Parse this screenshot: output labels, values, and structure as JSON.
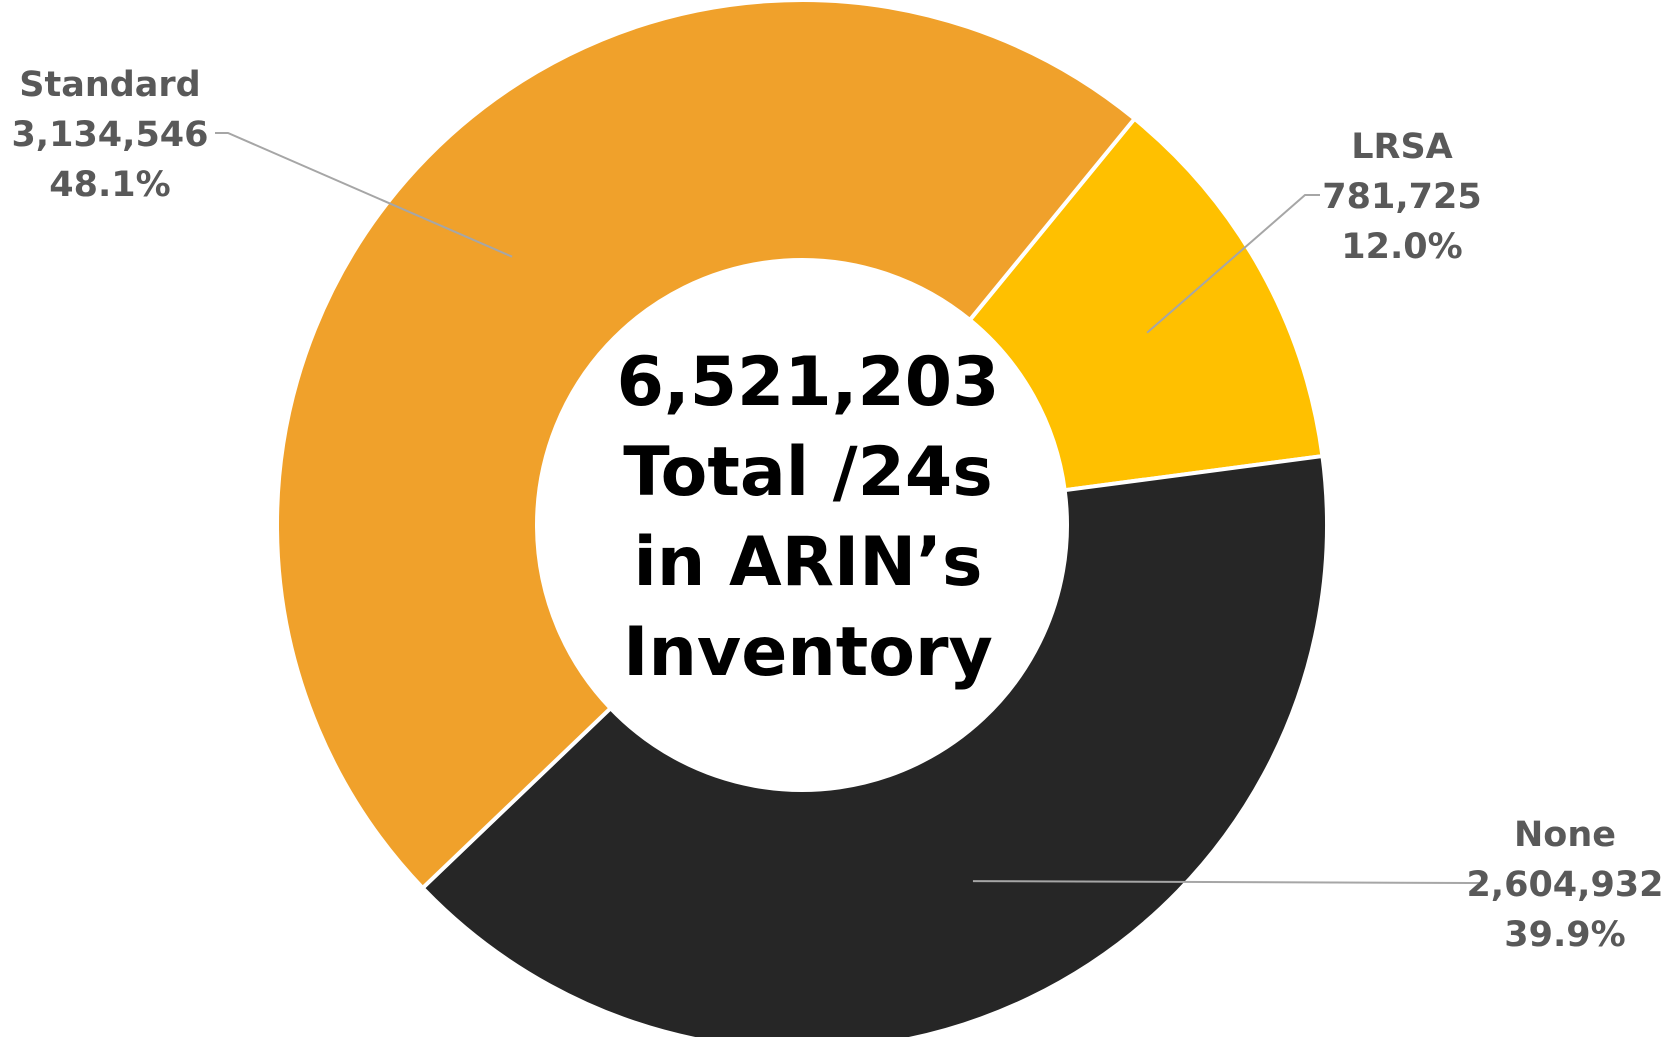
{
  "chart_data": {
    "type": "pie",
    "categories": [
      "Standard",
      "LRSA",
      "None"
    ],
    "values": [
      3134546,
      781725,
      2604932
    ],
    "value_labels": [
      "3,134,546",
      "781,725",
      "2,604,932"
    ],
    "percent_labels": [
      "48.1%",
      "12.0%",
      "39.9%"
    ],
    "colors": [
      "#F0A12B",
      "#FFC000",
      "#262626"
    ],
    "center_text": [
      "6,521,203",
      "Total /24s",
      "in ARIN’s",
      "Inventory"
    ],
    "legend": "none",
    "hole": "donut"
  }
}
